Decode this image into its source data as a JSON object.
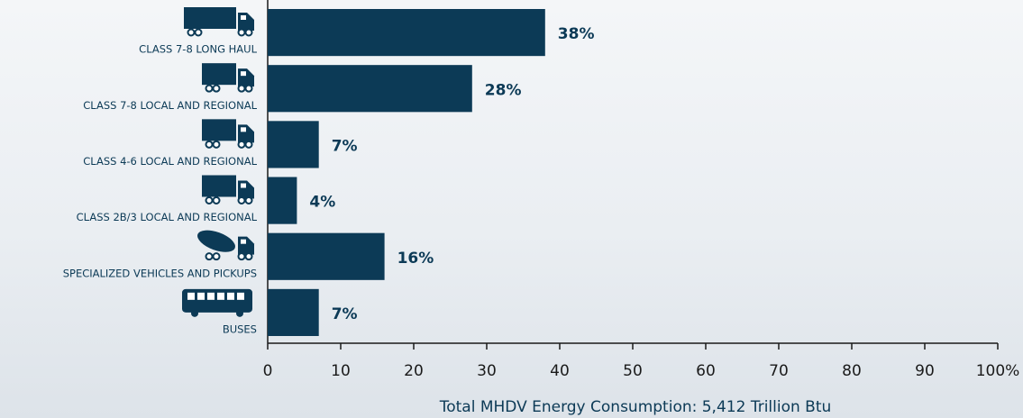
{
  "chart_data": {
    "type": "hbar",
    "categories": [
      "CLASS 7-8 LONG HAUL",
      "CLASS 7-8 LOCAL AND REGIONAL",
      "CLASS 4-6 LOCAL AND REGIONAL",
      "CLASS 2B/3 LOCAL AND REGIONAL",
      "SPECIALIZED VEHICLES AND PICKUPS",
      "BUSES"
    ],
    "values": [
      38,
      28,
      7,
      4,
      16,
      7
    ],
    "value_labels": [
      "38%",
      "28%",
      "7%",
      "4%",
      "16%",
      "7%"
    ],
    "color": "#0c3a56",
    "xlim": [
      0,
      100
    ],
    "xticks": [
      0,
      10,
      20,
      30,
      40,
      50,
      60,
      70,
      80,
      90,
      {
        "value": 100,
        "label": "100%"
      }
    ],
    "xlabel": "Total MHDV Energy Consumption: 5,412 Trillion Btu"
  }
}
